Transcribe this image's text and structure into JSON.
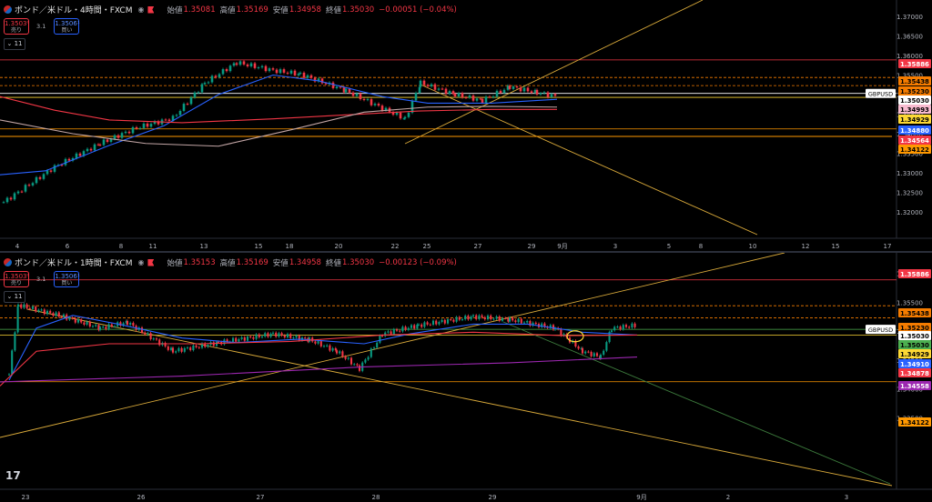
{
  "panes": [
    {
      "symbol": "ポンド／米ドル・4時間・FXCM",
      "ohlc": {
        "open_label": "始値",
        "open": "1.35081",
        "high_label": "高値",
        "high": "1.35169",
        "low_label": "安値",
        "low": "1.34958",
        "close_label": "終値",
        "close": "1.35030",
        "change": "−0.00051 (−0.04%)"
      },
      "sell": {
        "price": "1.3503⁰",
        "label": "売り"
      },
      "buy": {
        "price": "1.3506¹",
        "label": "買い"
      },
      "spread": "3.1",
      "indicators_count": "11",
      "price_axis": [
        "1.37000",
        "1.36500",
        "1.36000",
        "1.35500",
        "1.35000",
        "1.34500",
        "1.34000",
        "1.33500",
        "1.33000",
        "1.32500",
        "1.32000"
      ],
      "price_tags": [
        {
          "text": "1.35886",
          "bg": "#f23645",
          "fg": "#ffffff"
        },
        {
          "text": "1.35438",
          "bg": "#f57c00",
          "fg": "#000000"
        },
        {
          "text": "1.35230",
          "bg": "#f57c00",
          "fg": "#000000"
        },
        {
          "text": "1.35030",
          "bg": "#ffffff",
          "fg": "#000000"
        },
        {
          "text": "1.34993",
          "bg": "#f8bbd0",
          "fg": "#000000"
        },
        {
          "text": "1.34929",
          "bg": "#fdd835",
          "fg": "#000000"
        },
        {
          "text": "1.34880",
          "bg": "#2962ff",
          "fg": "#ffffff"
        },
        {
          "text": "1.34564",
          "bg": "#f23645",
          "fg": "#ffffff"
        },
        {
          "text": "1.34122",
          "bg": "#ff9800",
          "fg": "#000000"
        }
      ],
      "ticker_label": "GBPUSD",
      "time_axis": [
        "4",
        "6",
        "8",
        "11",
        "13",
        "15",
        "18",
        "20",
        "22",
        "25",
        "27",
        "29",
        "9月",
        "3",
        "5",
        "8",
        "10",
        "12",
        "15",
        "17"
      ]
    },
    {
      "symbol": "ポンド／米ドル・1時間・FXCM",
      "ohlc": {
        "open_label": "始値",
        "open": "1.35153",
        "high_label": "高値",
        "high": "1.35169",
        "low_label": "安値",
        "low": "1.34958",
        "close_label": "終値",
        "close": "1.35030",
        "change": "−0.00123 (−0.09%)"
      },
      "sell": {
        "price": "1.3503⁰",
        "label": "売り"
      },
      "buy": {
        "price": "1.3506¹",
        "label": "買い"
      },
      "spread": "3.1",
      "indicators_count": "11",
      "price_axis": [
        "1.36000",
        "1.35500",
        "1.35000",
        "1.34500",
        "1.34000",
        "1.33500"
      ],
      "price_tags": [
        {
          "text": "1.35886",
          "bg": "#f23645",
          "fg": "#ffffff"
        },
        {
          "text": "1.35438",
          "bg": "#f57c00",
          "fg": "#000000"
        },
        {
          "text": "1.35230",
          "bg": "#f57c00",
          "fg": "#000000"
        },
        {
          "text": "1.35030",
          "bg": "#ffffff",
          "fg": "#000000"
        },
        {
          "text": "1.35030",
          "bg": "#4caf50",
          "fg": "#000000"
        },
        {
          "text": "1.34929",
          "bg": "#fdd835",
          "fg": "#000000"
        },
        {
          "text": "1.34910",
          "bg": "#2962ff",
          "fg": "#ffffff"
        },
        {
          "text": "1.34878",
          "bg": "#f23645",
          "fg": "#ffffff"
        },
        {
          "text": "1.34558",
          "bg": "#9c27b0",
          "fg": "#ffffff"
        },
        {
          "text": "1.34122",
          "bg": "#ff9800",
          "fg": "#000000"
        }
      ],
      "ticker_label": "GBPUSD",
      "time_axis": [
        "23",
        "26",
        "27",
        "28",
        "29",
        "9月",
        "2",
        "3"
      ]
    }
  ],
  "colors": {
    "bull": "#089981",
    "bear": "#f23645",
    "ma_fast": "#2962ff",
    "ma_mid": "#f23645",
    "ma_slow": "#c2a5a5",
    "ma_long": "#9c27b0",
    "trend": "#d8a93a"
  },
  "logo_icon": "tradingview-logo"
}
